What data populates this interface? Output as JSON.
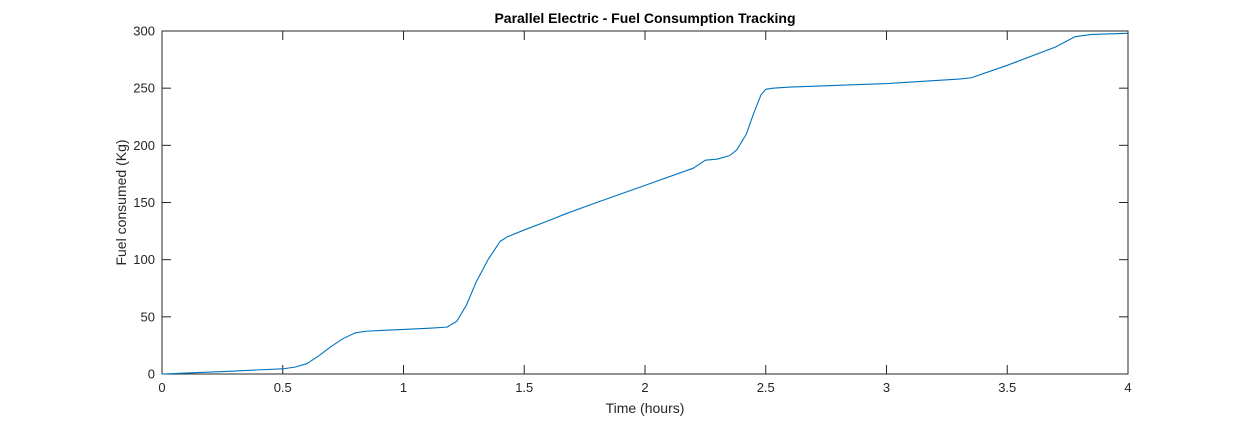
{
  "chart_data": {
    "type": "line",
    "title": "Parallel Electric - Fuel Consumption Tracking",
    "xlabel": "Time (hours)",
    "ylabel": "Fuel consumed (Kg)",
    "xlim": [
      0,
      4
    ],
    "ylim": [
      0,
      300
    ],
    "xticks": [
      0,
      0.5,
      1,
      1.5,
      2,
      2.5,
      3,
      3.5,
      4
    ],
    "xtick_labels": [
      "0",
      "0.5",
      "1",
      "1.5",
      "2",
      "2.5",
      "3",
      "3.5",
      "4"
    ],
    "yticks": [
      0,
      50,
      100,
      150,
      200,
      250,
      300
    ],
    "ytick_labels": [
      "0",
      "50",
      "100",
      "150",
      "200",
      "250",
      "300"
    ],
    "grid": false,
    "line_color": "#0072BD",
    "series": [
      {
        "x": [
          0,
          0.1,
          0.2,
          0.3,
          0.4,
          0.5,
          0.55,
          0.6,
          0.65,
          0.7,
          0.75,
          0.8,
          0.85,
          0.9,
          1.0,
          1.1,
          1.18,
          1.22,
          1.26,
          1.3,
          1.35,
          1.4,
          1.43,
          1.5,
          1.6,
          1.67,
          1.8,
          2.0,
          2.2,
          2.25,
          2.3,
          2.35,
          2.38,
          2.42,
          2.45,
          2.48,
          2.5,
          2.53,
          2.6,
          3.0,
          3.3,
          3.35,
          3.5,
          3.7,
          3.78,
          3.85,
          4.0
        ],
        "y": [
          0,
          0.8,
          1.7,
          2.6,
          3.6,
          4.5,
          6,
          9,
          16,
          24,
          31,
          36,
          37.5,
          38,
          39,
          40,
          41,
          46,
          60,
          80,
          100,
          116,
          120,
          126,
          134,
          140,
          150,
          165,
          180,
          187,
          188,
          191,
          196,
          210,
          228,
          244,
          249,
          250,
          251,
          254,
          258,
          259,
          270,
          286,
          295,
          297,
          298
        ]
      }
    ]
  }
}
